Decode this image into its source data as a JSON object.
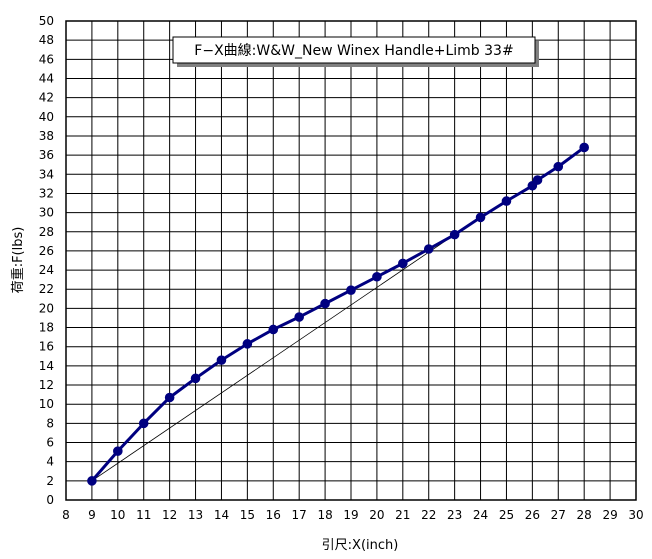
{
  "chart_data": {
    "type": "line",
    "title": "F−X曲線:W&W_New Winex Handle+Limb 33#",
    "xlabel": "引尺:X(inch)",
    "ylabel": "荷重:F(lbs)",
    "xlim": [
      8,
      30
    ],
    "ylim": [
      0,
      50
    ],
    "x_ticks": [
      "8",
      "9",
      "10",
      "11",
      "12",
      "13",
      "14",
      "15",
      "16",
      "17",
      "18",
      "19",
      "20",
      "21",
      "22",
      "23",
      "24",
      "25",
      "26",
      "27",
      "28",
      "29",
      "30"
    ],
    "y_ticks": [
      "0",
      "2",
      "4",
      "6",
      "8",
      "10",
      "12",
      "14",
      "16",
      "18",
      "20",
      "22",
      "24",
      "26",
      "28",
      "30",
      "32",
      "34",
      "36",
      "38",
      "40",
      "42",
      "44",
      "46",
      "48",
      "50"
    ],
    "grid": true,
    "legend": "none",
    "series": [
      {
        "color": "#000080",
        "x": [
          9,
          10,
          11,
          12,
          13,
          14,
          15,
          16,
          17,
          18,
          19,
          20,
          21,
          22,
          23,
          24,
          25,
          26,
          26.2,
          27,
          28
        ],
        "y": [
          2.0,
          5.1,
          8.0,
          10.7,
          12.7,
          14.6,
          16.3,
          17.8,
          19.1,
          20.5,
          21.9,
          23.3,
          24.7,
          26.2,
          27.7,
          29.5,
          31.2,
          32.8,
          33.4,
          34.8,
          36.8
        ]
      }
    ],
    "reference_line": {
      "color": "#000000",
      "x": [
        9,
        23
      ],
      "y": [
        2.0,
        27.7
      ]
    }
  }
}
